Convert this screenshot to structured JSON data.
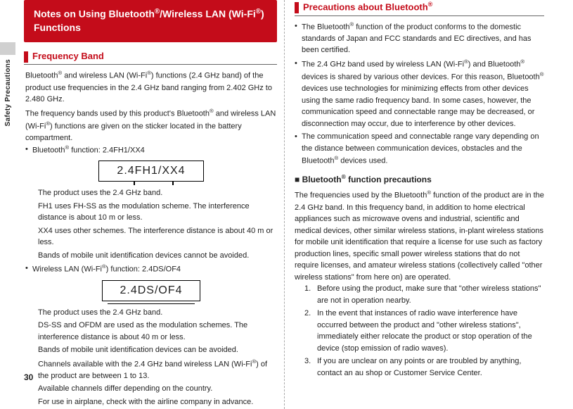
{
  "sidebar": {
    "label": "Safety Precautions"
  },
  "pageNumber": "30",
  "left": {
    "titleBox": "Notes on Using Bluetooth®/Wireless LAN (Wi-Fi®) Functions",
    "section1": {
      "heading": "Frequency Band",
      "para1": "Bluetooth® and wireless LAN (Wi-Fi®) functions (2.4 GHz band) of the product use frequencies in the 2.4 GHz band ranging from 2.402 GHz to 2.480 GHz.",
      "para2": "The frequency bands used by this product's Bluetooth® and wireless LAN (Wi-Fi®) functions are given on the sticker located in the battery compartment.",
      "b1": "Bluetooth® function: 2.4FH1/XX4",
      "fig1_label": "2.4FH1/XX4",
      "sub1a": "The product uses the 2.4 GHz band.",
      "sub1b": "FH1 uses FH-SS as the modulation scheme. The interference distance is about 10 m or less.",
      "sub1c": "XX4 uses other schemes. The interference distance is about 40 m or less.",
      "sub1d": "Bands of mobile unit identification devices cannot be avoided.",
      "b2": "Wireless LAN (Wi-Fi®) function: 2.4DS/OF4",
      "fig2_label": "2.4DS/OF4",
      "sub2a": "The product uses the 2.4 GHz band.",
      "sub2b": "DS-SS and OFDM are used as the modulation schemes. The interference distance is about 40 m or less.",
      "sub2c": "Bands of mobile unit identification devices can be avoided.",
      "sub2d": "Channels available with the 2.4 GHz band wireless LAN (Wi-Fi®) of the product are between 1 to 13.",
      "sub2e": "Available channels differ depending on the country.",
      "sub2f": "For use in airplane, check with the airline company in advance."
    }
  },
  "right": {
    "section2": {
      "heading": "Precautions about Bluetooth®",
      "b1": "The Bluetooth® function of the product conforms to the domestic standards of Japan and FCC standards and EC directives, and has been certified.",
      "b2": "The 2.4 GHz band used by wireless LAN (Wi-Fi®) and Bluetooth® devices is shared by various other devices. For this reason, Bluetooth® devices use technologies for minimizing effects from other devices using the same radio frequency band. In some cases, however, the communication speed and connectable range may be decreased, or disconnection may occur, due to interference by other devices.",
      "b3": "The communication speed and connectable range vary depending on the distance between communication devices, obstacles and the Bluetooth® devices used.",
      "subhead": "Bluetooth® function precautions",
      "para": "The frequencies used by the Bluetooth® function of the product are in the 2.4 GHz band. In this frequency band, in addition to home electrical appliances such as microwave ovens and industrial, scientific and medical devices, other similar wireless stations, in-plant wireless stations for mobile unit identification that require a license for use such as factory production lines, specific small power wireless stations that do not require licenses, and amateur wireless stations (collectively called \"other wireless stations\" from here on) are operated.",
      "n1": "Before using the product, make sure that \"other wireless stations\" are not in operation nearby.",
      "n2": "In the event that instances of radio wave interference have occurred between the product and \"other wireless stations\", immediately either relocate the product or stop operation of the device (stop emission of radio waves).",
      "n3": "If you are unclear on any points or are troubled by anything, contact an au shop or Customer Service Center."
    }
  }
}
